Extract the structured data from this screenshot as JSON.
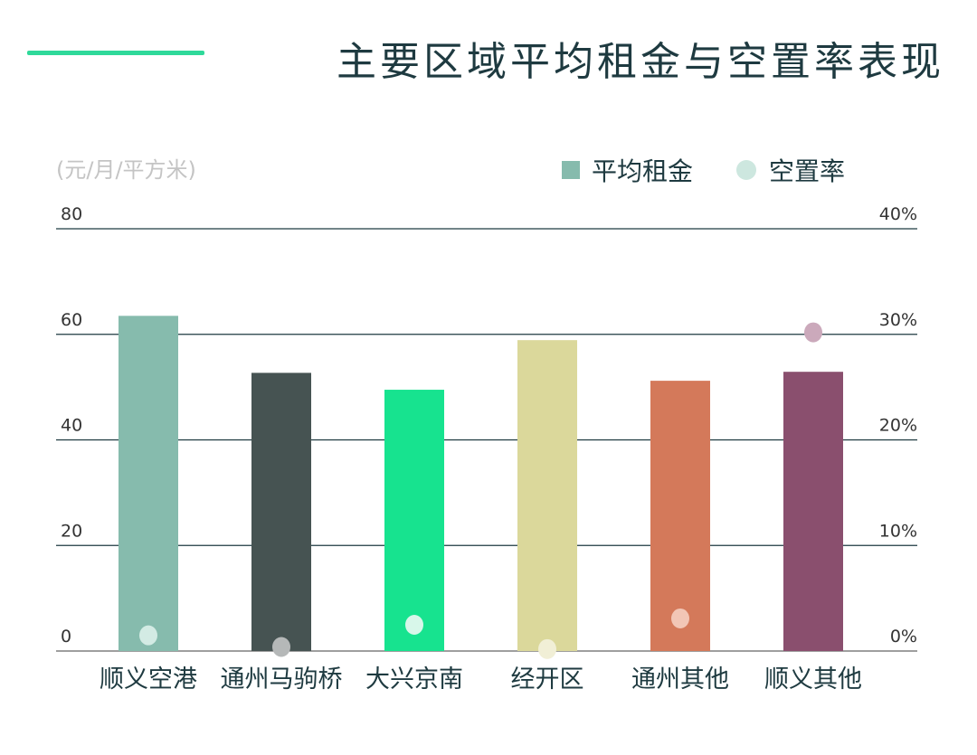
{
  "title": "主要区域平均租金与空置率表现",
  "accent_color": "#2fd99a",
  "chart_data": {
    "type": "bar",
    "title": "主要区域平均租金与空置率表现",
    "unit_label": "(元/月/平方米)",
    "categories": [
      "顺义空港",
      "通州马驹桥",
      "大兴京南",
      "经开区",
      "通州其他",
      "顺义其他"
    ],
    "series": [
      {
        "name": "平均租金",
        "type": "bar",
        "axis": "left",
        "values": [
          63.5,
          52.7,
          49.5,
          58.9,
          51.2,
          52.9
        ]
      },
      {
        "name": "空置率",
        "type": "scatter",
        "axis": "right",
        "unit": "%",
        "values": [
          1.4,
          0.3,
          2.4,
          0.1,
          3.0,
          30.1
        ]
      }
    ],
    "bar_colors": [
      "#86bbad",
      "#465352",
      "#17e38f",
      "#dbd89b",
      "#d4795a",
      "#8a4f6e"
    ],
    "dot_colors": [
      "#d3ebe4",
      "#b5b8b8",
      "#d8f7ea",
      "#f1efd6",
      "#f2c6b6",
      "#cba9bb"
    ],
    "legend_colors": {
      "bar": "#86bbad",
      "dot": "#cde7df"
    },
    "y_left": {
      "range": [
        0,
        80
      ],
      "ticks": [
        "0",
        "20",
        "40",
        "60",
        "80"
      ]
    },
    "y_right": {
      "range": [
        0,
        40
      ],
      "ticks": [
        "0%",
        "10%",
        "20%",
        "30%",
        "40%"
      ]
    },
    "grid": true,
    "legend_position": "top-right"
  }
}
